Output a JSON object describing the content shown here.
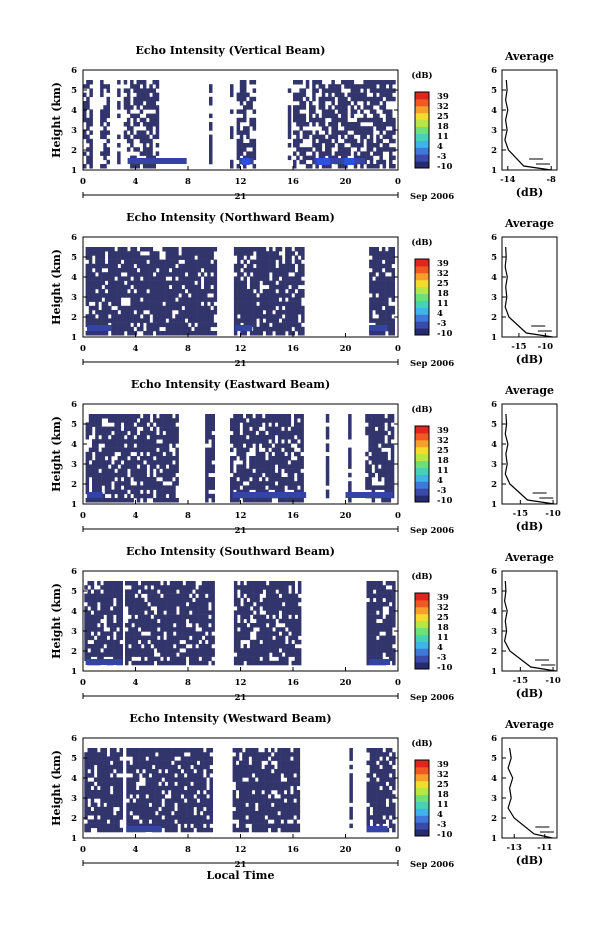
{
  "colorbar_colors": [
    "#262a6e",
    "#3a4aa8",
    "#3f78d8",
    "#3fb4e8",
    "#46d2b4",
    "#6ee07a",
    "#b8e644",
    "#f2dc2c",
    "#f6a02c",
    "#f05a22",
    "#e0241e"
  ],
  "beam_color": "#32346c",
  "chart_data": [
    {
      "type": "heatmap",
      "title": "Echo Intensity (Vertical Beam)",
      "ylabel": "Height (km)",
      "ylim": [
        1,
        6
      ],
      "yticks": [
        "1",
        "2",
        "3",
        "4",
        "5",
        "6"
      ],
      "xticks": [
        "0",
        "4",
        "8",
        "12",
        "16",
        "20",
        "0"
      ],
      "xlim": [
        0,
        24
      ],
      "date_day": "21",
      "date_label": "Sep 2006",
      "colorbar": {
        "unit": "(dB)",
        "ticks": [
          "39",
          "32",
          "25",
          "18",
          "11",
          "4",
          "-3",
          "-10"
        ]
      },
      "avg_title": "Average",
      "avg_xlabel": "(dB)",
      "avg_xticks": [
        "-14",
        "-8"
      ],
      "avg_xlim": [
        -14.8,
        -7.2
      ],
      "profile_db": [
        -8.0,
        -11.8,
        -13.9,
        -14.4,
        -14.1,
        -14.3,
        -14.0,
        -14.3,
        -14.1,
        -14.2
      ],
      "data_segments": [
        [
          0.0,
          0.5
        ],
        [
          1.3,
          1.9
        ],
        [
          2.6,
          2.7
        ],
        [
          3.1,
          5.7
        ],
        [
          9.6,
          9.8
        ],
        [
          11.2,
          11.3
        ],
        [
          11.7,
          13.1
        ],
        [
          15.6,
          15.7
        ],
        [
          16.0,
          23.7
        ]
      ],
      "low_band_segments": [
        [
          3.4,
          7.9
        ],
        [
          11.9,
          13.0
        ],
        [
          17.6,
          21.5
        ]
      ],
      "bright_segments": [
        [
          12.1,
          12.7
        ],
        [
          17.8,
          18.8
        ],
        [
          19.9,
          20.7
        ]
      ],
      "data_top": 5.5,
      "density": 0.62
    },
    {
      "type": "heatmap",
      "title": "Echo Intensity (Northward Beam)",
      "ylabel": "Height (km)",
      "ylim": [
        1,
        6
      ],
      "yticks": [
        "1",
        "2",
        "3",
        "4",
        "5",
        "6"
      ],
      "xticks": [
        "0",
        "4",
        "8",
        "12",
        "16",
        "20",
        "0"
      ],
      "xlim": [
        0,
        24
      ],
      "date_day": "21",
      "date_label": "Sep 2006",
      "colorbar": {
        "unit": "(dB)",
        "ticks": [
          "39",
          "32",
          "25",
          "18",
          "11",
          "4",
          "-3",
          "-10"
        ]
      },
      "avg_title": "Average",
      "avg_xlabel": "(dB)",
      "avg_xticks": [
        "-15",
        "-10"
      ],
      "avg_xlim": [
        -18.2,
        -7.8
      ],
      "profile_db": [
        -8.6,
        -13.6,
        -16.9,
        -17.6,
        -17.3,
        -17.5,
        -17.2,
        -17.6,
        -17.4,
        -17.5
      ],
      "data_segments": [
        [
          0.2,
          10.0
        ],
        [
          11.5,
          16.7
        ],
        [
          21.8,
          23.6
        ]
      ],
      "low_band_segments": [
        [
          0.3,
          2.2
        ],
        [
          11.6,
          12.9
        ],
        [
          21.8,
          23.2
        ]
      ],
      "bright_segments": [],
      "data_top": 5.5,
      "density": 0.83
    },
    {
      "type": "heatmap",
      "title": "Echo Intensity (Eastward Beam)",
      "ylabel": "Height (km)",
      "ylim": [
        1,
        6
      ],
      "yticks": [
        "1",
        "2",
        "3",
        "4",
        "5",
        "6"
      ],
      "xticks": [
        "0",
        "4",
        "8",
        "12",
        "16",
        "20",
        "0"
      ],
      "xlim": [
        0,
        24
      ],
      "date_day": "21",
      "date_label": "Sep 2006",
      "colorbar": {
        "unit": "(dB)",
        "ticks": [
          "39",
          "32",
          "25",
          "18",
          "11",
          "4",
          "-3",
          "-10"
        ]
      },
      "avg_title": "Average",
      "avg_xlabel": "(dB)",
      "avg_xticks": [
        "-15",
        "-10"
      ],
      "avg_xlim": [
        -17.8,
        -9.4
      ],
      "profile_db": [
        -9.8,
        -13.9,
        -16.6,
        -17.3,
        -17.0,
        -17.2,
        -16.9,
        -17.3,
        -17.1,
        -17.2
      ],
      "data_segments": [
        [
          0.2,
          4.6
        ],
        [
          4.6,
          7.2
        ],
        [
          9.3,
          9.8
        ],
        [
          11.2,
          16.7
        ],
        [
          18.5,
          18.6
        ],
        [
          20.2,
          20.4
        ],
        [
          21.5,
          23.6
        ]
      ],
      "low_band_segments": [
        [
          0.3,
          1.5
        ],
        [
          11.4,
          17.0
        ],
        [
          20.0,
          23.6
        ]
      ],
      "bright_segments": [],
      "data_top": 5.5,
      "density": 0.78
    },
    {
      "type": "heatmap",
      "title": "Echo Intensity (Southward Beam)",
      "ylabel": "Height (km)",
      "ylim": [
        1,
        6
      ],
      "yticks": [
        "1",
        "2",
        "3",
        "4",
        "5",
        "6"
      ],
      "xticks": [
        "0",
        "4",
        "8",
        "12",
        "16",
        "20",
        "0"
      ],
      "xlim": [
        0,
        24
      ],
      "date_day": "21",
      "date_label": "Sep 2006",
      "colorbar": {
        "unit": "(dB)",
        "ticks": [
          "39",
          "32",
          "25",
          "18",
          "11",
          "4",
          "-3",
          "-10"
        ]
      },
      "avg_title": "Average",
      "avg_xlabel": "(dB)",
      "avg_xticks": [
        "-15",
        "-10"
      ],
      "avg_xlim": [
        -17.8,
        -9.4
      ],
      "profile_db": [
        -9.6,
        -13.4,
        -16.6,
        -17.4,
        -17.1,
        -17.3,
        -17.0,
        -17.4,
        -17.2,
        -17.3
      ],
      "data_segments": [
        [
          0.1,
          3.0
        ],
        [
          3.2,
          10.0
        ],
        [
          11.5,
          16.5
        ],
        [
          21.6,
          23.6
        ]
      ],
      "low_band_segments": [
        [
          0.2,
          3.0
        ],
        [
          21.8,
          23.4
        ]
      ],
      "bright_segments": [],
      "data_top": 5.5,
      "density": 0.82
    },
    {
      "type": "heatmap",
      "title": "Echo Intensity (Westward Beam)",
      "ylabel": "Height (km)",
      "ylim": [
        1,
        6
      ],
      "yticks": [
        "1",
        "2",
        "3",
        "4",
        "5",
        "6"
      ],
      "xticks": [
        "0",
        "4",
        "8",
        "12",
        "16",
        "20",
        "0"
      ],
      "xlim": [
        0,
        24
      ],
      "date_day": "21",
      "date_label": "Sep 2006",
      "colorbar": {
        "unit": "(dB)",
        "ticks": [
          "39",
          "32",
          "25",
          "18",
          "11",
          "4",
          "-3",
          "-10"
        ]
      },
      "avg_title": "Average",
      "avg_xlabel": "(dB)",
      "avg_xticks": [
        "-13",
        "-11"
      ],
      "avg_xlim": [
        -13.8,
        -10.2
      ],
      "profile_db": [
        -10.5,
        -11.7,
        -13.0,
        -13.4,
        -13.2,
        -13.3,
        -13.1,
        -13.4,
        -13.2,
        -13.3
      ],
      "data_segments": [
        [
          0.1,
          3.0
        ],
        [
          3.3,
          9.8
        ],
        [
          11.4,
          16.3
        ],
        [
          20.3,
          20.4
        ],
        [
          21.6,
          23.6
        ]
      ],
      "low_band_segments": [
        [
          3.3,
          6.0
        ],
        [
          21.6,
          23.2
        ]
      ],
      "bright_segments": [],
      "data_top": 5.5,
      "density": 0.8,
      "xlabel": "Local Time"
    }
  ]
}
